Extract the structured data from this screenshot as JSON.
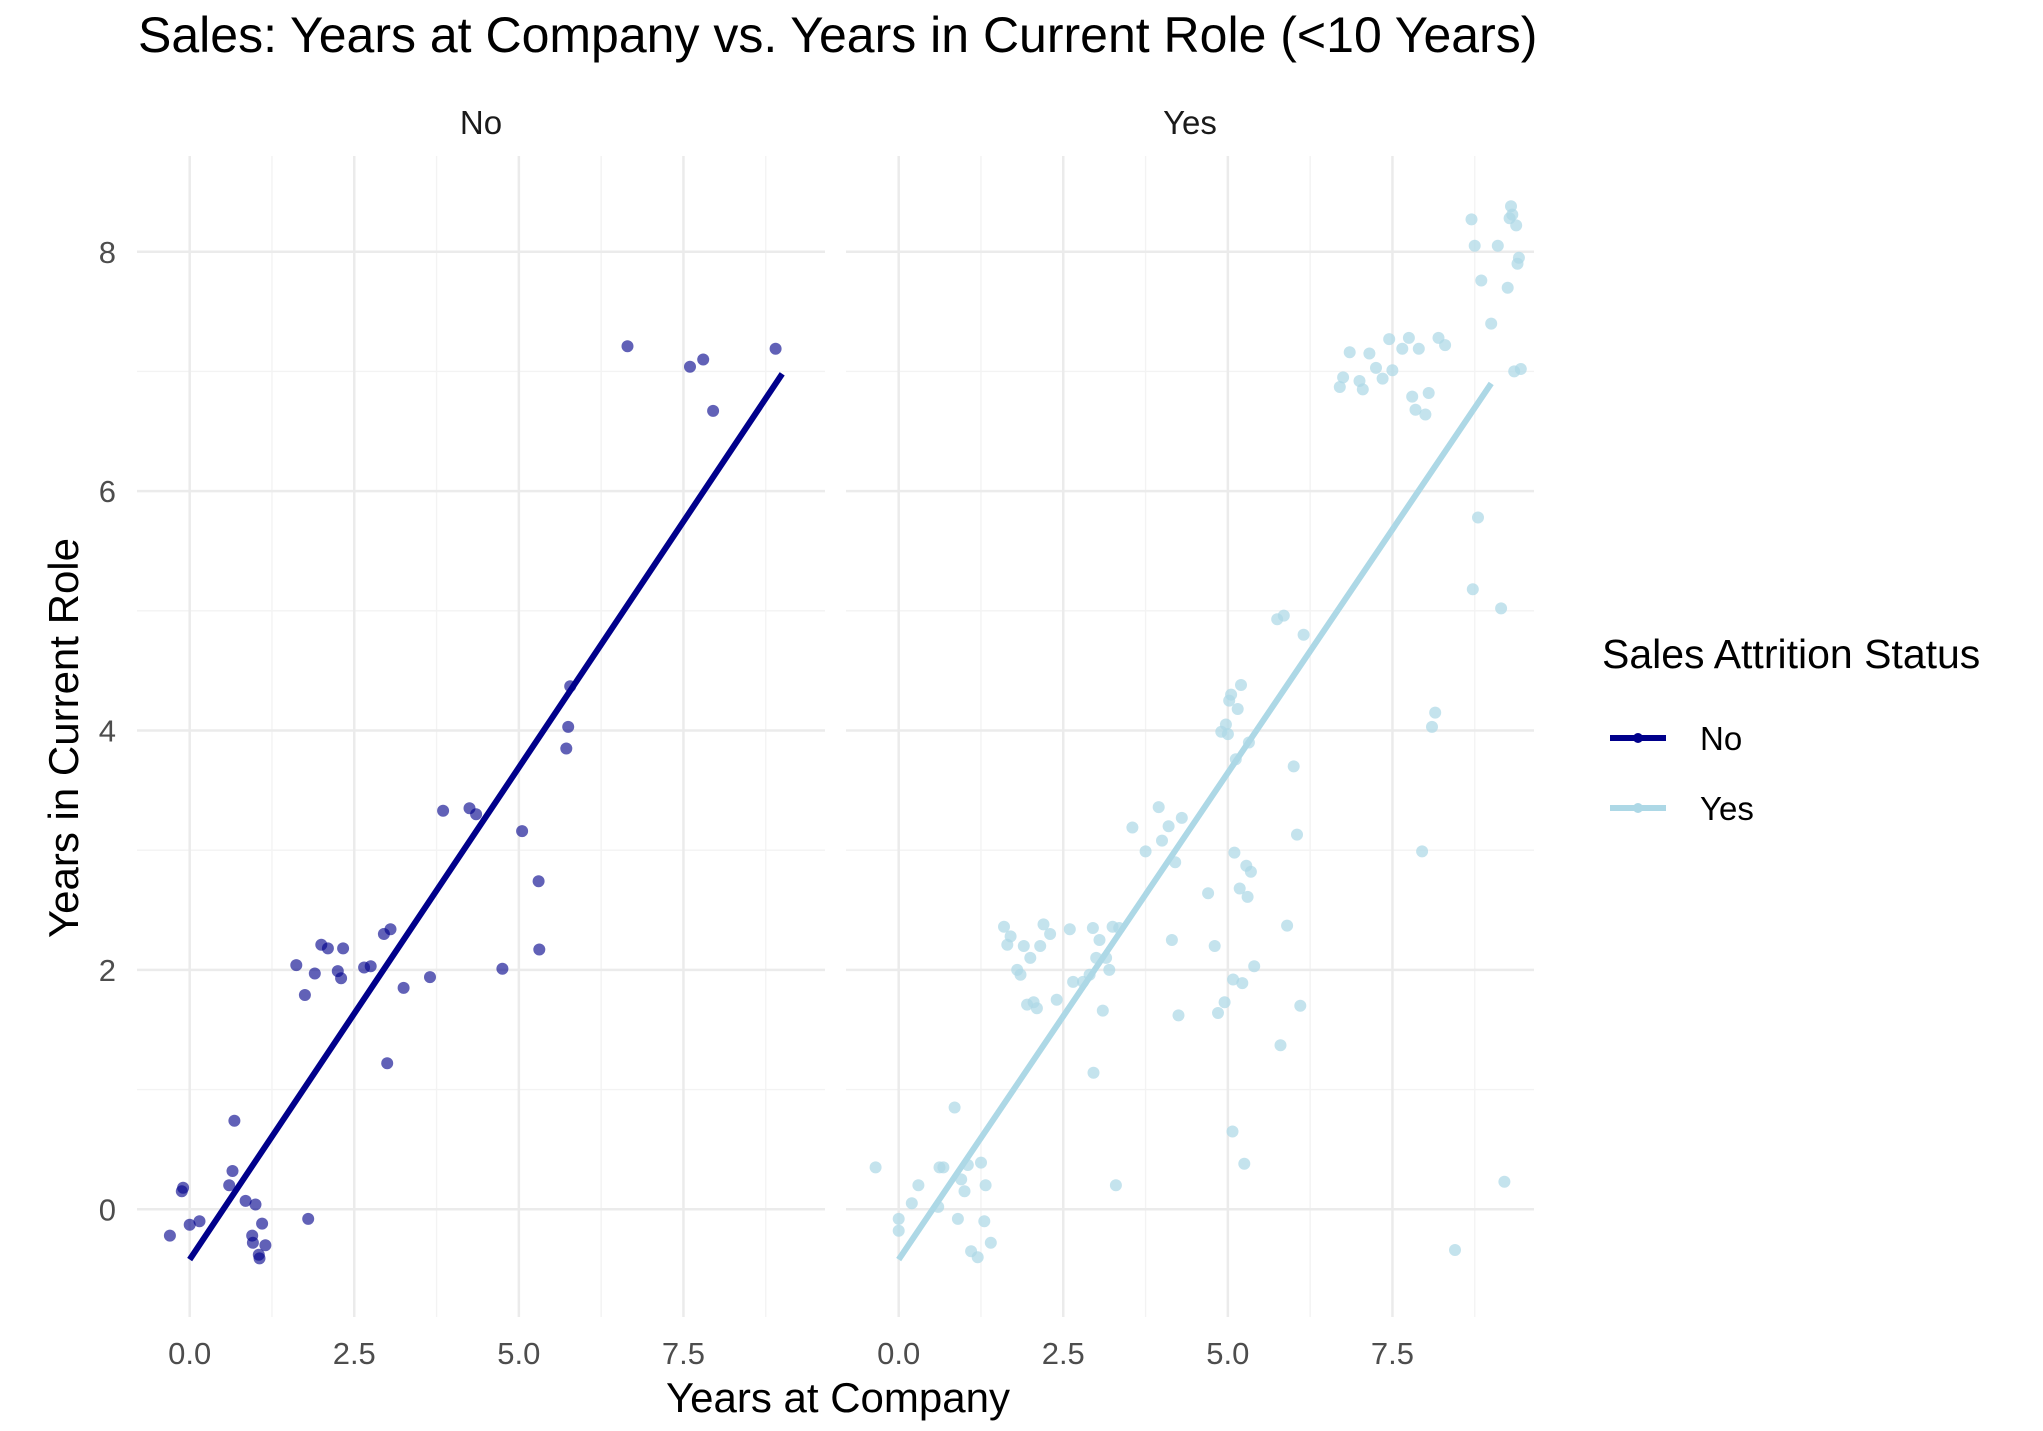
{
  "chart_data": {
    "type": "scatter",
    "title": "Sales: Years at Company vs. Years in Current Role (<10 Years)",
    "xlabel": "Years at Company",
    "ylabel": "Years in Current Role",
    "xlim": [
      -0.8,
      9.65
    ],
    "ylim": [
      -0.9,
      8.8
    ],
    "x_ticks": [
      "0.0",
      "2.5",
      "5.0",
      "7.5"
    ],
    "x_tick_values": [
      0,
      2.5,
      5,
      7.5
    ],
    "y_ticks": [
      "0",
      "2",
      "4",
      "6",
      "8"
    ],
    "y_tick_values": [
      0,
      2,
      4,
      6,
      8
    ],
    "grid": true,
    "legend": {
      "title": "Sales Attrition Status",
      "placement": "right",
      "entries": [
        {
          "label": "No",
          "color": "#00008B"
        },
        {
          "label": "Yes",
          "color": "#ADD8E6"
        }
      ]
    },
    "panels": [
      {
        "label": "No",
        "color": "#00008B",
        "fit_line": {
          "x": [
            0,
            9
          ],
          "y": [
            -0.42,
            6.98
          ]
        },
        "points": [
          [
            -0.3,
            -0.22
          ],
          [
            -0.12,
            0.15
          ],
          [
            -0.1,
            0.18
          ],
          [
            0,
            -0.13
          ],
          [
            0.15,
            -0.1
          ],
          [
            0.6,
            0.2
          ],
          [
            0.65,
            0.32
          ],
          [
            0.68,
            0.74
          ],
          [
            0.85,
            0.07
          ],
          [
            0.95,
            -0.22
          ],
          [
            0.96,
            -0.28
          ],
          [
            1.0,
            0.04
          ],
          [
            1.05,
            -0.38
          ],
          [
            1.06,
            -0.41
          ],
          [
            1.1,
            -0.12
          ],
          [
            1.15,
            -0.3
          ],
          [
            1.62,
            2.04
          ],
          [
            1.75,
            1.79
          ],
          [
            1.8,
            -0.08
          ],
          [
            1.9,
            1.97
          ],
          [
            2.0,
            2.21
          ],
          [
            2.1,
            2.18
          ],
          [
            2.25,
            1.99
          ],
          [
            2.3,
            1.93
          ],
          [
            2.33,
            2.18
          ],
          [
            2.65,
            2.02
          ],
          [
            2.75,
            2.03
          ],
          [
            2.95,
            2.3
          ],
          [
            3.0,
            1.22
          ],
          [
            3.05,
            2.34
          ],
          [
            3.25,
            1.85
          ],
          [
            3.65,
            1.94
          ],
          [
            3.85,
            3.33
          ],
          [
            4.25,
            3.35
          ],
          [
            4.35,
            3.3
          ],
          [
            4.75,
            2.01
          ],
          [
            5.05,
            3.16
          ],
          [
            5.3,
            2.74
          ],
          [
            5.31,
            2.17
          ],
          [
            5.72,
            3.85
          ],
          [
            5.75,
            4.03
          ],
          [
            5.78,
            4.37
          ],
          [
            6.65,
            7.21
          ],
          [
            7.6,
            7.04
          ],
          [
            7.8,
            7.1
          ],
          [
            7.95,
            6.67
          ],
          [
            8.9,
            7.19
          ]
        ]
      },
      {
        "label": "Yes",
        "color": "#ADD8E6",
        "fit_line": {
          "x": [
            0,
            9
          ],
          "y": [
            -0.42,
            6.9
          ]
        },
        "points": [
          [
            -0.35,
            0.35
          ],
          [
            0,
            -0.08
          ],
          [
            0,
            -0.18
          ],
          [
            0.2,
            0.05
          ],
          [
            0.3,
            0.2
          ],
          [
            0.6,
            0.02
          ],
          [
            0.62,
            0.35
          ],
          [
            0.68,
            0.35
          ],
          [
            0.85,
            0.85
          ],
          [
            0.9,
            -0.08
          ],
          [
            0.95,
            0.25
          ],
          [
            1.0,
            0.15
          ],
          [
            1.05,
            0.37
          ],
          [
            1.1,
            -0.35
          ],
          [
            1.2,
            -0.4
          ],
          [
            1.25,
            0.39
          ],
          [
            1.3,
            -0.1
          ],
          [
            1.32,
            0.2
          ],
          [
            1.4,
            -0.28
          ],
          [
            1.6,
            2.36
          ],
          [
            1.65,
            2.21
          ],
          [
            1.7,
            2.28
          ],
          [
            1.8,
            2.0
          ],
          [
            1.85,
            1.96
          ],
          [
            1.9,
            2.2
          ],
          [
            1.95,
            1.71
          ],
          [
            2.0,
            2.1
          ],
          [
            2.05,
            1.73
          ],
          [
            2.1,
            1.68
          ],
          [
            2.15,
            2.2
          ],
          [
            2.2,
            2.38
          ],
          [
            2.3,
            2.3
          ],
          [
            2.4,
            1.75
          ],
          [
            2.6,
            2.34
          ],
          [
            2.65,
            1.9
          ],
          [
            2.8,
            1.9
          ],
          [
            2.9,
            1.96
          ],
          [
            2.95,
            2.35
          ],
          [
            2.96,
            1.14
          ],
          [
            3.0,
            2.1
          ],
          [
            3.05,
            2.25
          ],
          [
            3.1,
            1.66
          ],
          [
            3.15,
            2.1
          ],
          [
            3.2,
            2.0
          ],
          [
            3.25,
            2.36
          ],
          [
            3.3,
            0.2
          ],
          [
            3.35,
            2.35
          ],
          [
            3.55,
            3.19
          ],
          [
            3.75,
            2.99
          ],
          [
            3.95,
            3.36
          ],
          [
            4.0,
            3.08
          ],
          [
            4.1,
            3.2
          ],
          [
            4.15,
            2.25
          ],
          [
            4.2,
            2.9
          ],
          [
            4.25,
            1.62
          ],
          [
            4.3,
            3.27
          ],
          [
            4.7,
            2.64
          ],
          [
            4.8,
            2.2
          ],
          [
            4.85,
            1.64
          ],
          [
            4.9,
            3.99
          ],
          [
            4.95,
            1.73
          ],
          [
            4.97,
            4.05
          ],
          [
            5.0,
            3.97
          ],
          [
            5.02,
            4.25
          ],
          [
            5.05,
            4.3
          ],
          [
            5.07,
            0.65
          ],
          [
            5.08,
            1.92
          ],
          [
            5.1,
            2.98
          ],
          [
            5.12,
            3.76
          ],
          [
            5.15,
            4.18
          ],
          [
            5.18,
            2.68
          ],
          [
            5.2,
            4.38
          ],
          [
            5.22,
            1.89
          ],
          [
            5.25,
            0.38
          ],
          [
            5.28,
            2.87
          ],
          [
            5.3,
            2.61
          ],
          [
            5.32,
            3.9
          ],
          [
            5.35,
            2.82
          ],
          [
            5.4,
            2.03
          ],
          [
            5.75,
            4.93
          ],
          [
            5.8,
            1.37
          ],
          [
            5.85,
            4.96
          ],
          [
            5.9,
            2.37
          ],
          [
            6.0,
            3.7
          ],
          [
            6.05,
            3.13
          ],
          [
            6.1,
            1.7
          ],
          [
            6.15,
            4.8
          ],
          [
            6.7,
            6.87
          ],
          [
            6.75,
            6.95
          ],
          [
            6.85,
            7.16
          ],
          [
            7.0,
            6.92
          ],
          [
            7.05,
            6.85
          ],
          [
            7.15,
            7.15
          ],
          [
            7.25,
            7.03
          ],
          [
            7.35,
            6.94
          ],
          [
            7.45,
            7.27
          ],
          [
            7.5,
            7.01
          ],
          [
            7.65,
            7.19
          ],
          [
            7.75,
            7.28
          ],
          [
            7.8,
            6.79
          ],
          [
            7.85,
            6.68
          ],
          [
            7.9,
            7.19
          ],
          [
            7.95,
            2.99
          ],
          [
            8.0,
            6.64
          ],
          [
            8.05,
            6.82
          ],
          [
            8.1,
            4.03
          ],
          [
            8.15,
            4.15
          ],
          [
            8.2,
            7.28
          ],
          [
            8.3,
            7.22
          ],
          [
            8.45,
            -0.34
          ],
          [
            8.7,
            8.27
          ],
          [
            8.72,
            5.18
          ],
          [
            8.75,
            8.05
          ],
          [
            8.8,
            5.78
          ],
          [
            8.85,
            7.76
          ],
          [
            9.0,
            7.4
          ],
          [
            9.15,
            5.02
          ],
          [
            9.2,
            0.23
          ],
          [
            9.25,
            7.7
          ],
          [
            9.28,
            8.28
          ],
          [
            9.3,
            8.38
          ],
          [
            9.32,
            8.31
          ],
          [
            9.35,
            7.0
          ],
          [
            9.38,
            8.22
          ],
          [
            9.4,
            7.9
          ],
          [
            9.42,
            7.95
          ],
          [
            9.45,
            7.02
          ],
          [
            9.1,
            8.05
          ]
        ]
      }
    ]
  }
}
